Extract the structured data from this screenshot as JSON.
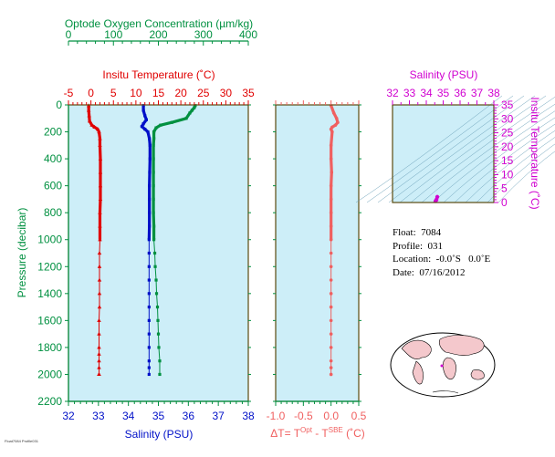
{
  "colors": {
    "temperature": "#e00000",
    "salinity": "#0010c8",
    "oxygen": "#009040",
    "delta": "#f06060",
    "ts_axis": "#d000d0",
    "panel_bg": "#cdeef8",
    "frame": "#5a4a10",
    "land": "#f4c8cc"
  },
  "chart_data": [
    {
      "type": "line",
      "title": "",
      "ylabel": "Pressure (decibar)",
      "ylim": [
        2200,
        0
      ],
      "yticks": [
        "0",
        "200",
        "400",
        "600",
        "800",
        "1000",
        "1200",
        "1400",
        "1600",
        "1800",
        "2000",
        "2200"
      ],
      "axes": {
        "oxygen": {
          "label": "Optode Oxygen Concentration (µm/kg)",
          "range": [
            0,
            400
          ],
          "ticks": [
            "0",
            "100",
            "200",
            "300",
            "400"
          ]
        },
        "temperature": {
          "label": "Insitu Temperature (˚C)",
          "range": [
            -5,
            35
          ],
          "ticks": [
            "-5",
            "0",
            "5",
            "10",
            "15",
            "20",
            "25",
            "30",
            "35"
          ]
        },
        "salinity": {
          "label": "Salinity (PSU)",
          "range": [
            32,
            38
          ],
          "ticks": [
            "32",
            "33",
            "34",
            "35",
            "36",
            "37",
            "38"
          ]
        }
      },
      "series": [
        {
          "name": "temperature",
          "axis": "temperature",
          "x": [
            -0.5,
            -0.5,
            -0.4,
            -0.3,
            0.2,
            0.8,
            1.5,
            1.8,
            2.0,
            2.0,
            2.1,
            2.1,
            2.1,
            2.1,
            2.0,
            2.0,
            2.0,
            1.9,
            1.9,
            1.9,
            1.9,
            1.9,
            1.8,
            1.8,
            1.8,
            1.8,
            1.8,
            1.8,
            1.8,
            1.8,
            1.8
          ],
          "y": [
            5,
            40,
            80,
            120,
            150,
            165,
            180,
            200,
            250,
            300,
            400,
            500,
            600,
            700,
            800,
            900,
            1000,
            1100,
            1200,
            1300,
            1400,
            1500,
            1600,
            1700,
            1800,
            1850,
            1900,
            1950,
            2000,
            2000,
            2000
          ]
        },
        {
          "name": "salinity",
          "axis": "salinity",
          "x": [
            34.5,
            34.5,
            34.55,
            34.6,
            34.5,
            34.45,
            34.55,
            34.65,
            34.7,
            34.72,
            34.72,
            34.71,
            34.7,
            34.7,
            34.7,
            34.7,
            34.69,
            34.69,
            34.69,
            34.69,
            34.69,
            34.69,
            34.69,
            34.69,
            34.69,
            34.69,
            34.69,
            34.69
          ],
          "y": [
            5,
            40,
            80,
            110,
            140,
            160,
            180,
            200,
            250,
            300,
            400,
            500,
            600,
            700,
            800,
            900,
            1000,
            1100,
            1200,
            1300,
            1400,
            1500,
            1600,
            1700,
            1800,
            1900,
            1950,
            2000
          ]
        },
        {
          "name": "oxygen",
          "axis": "oxygen",
          "x": [
            282,
            280,
            275,
            270,
            262,
            230,
            205,
            195,
            190,
            190,
            189,
            189,
            189,
            189,
            189,
            189,
            190,
            190,
            192,
            193,
            195,
            196,
            198,
            199,
            200,
            201,
            203,
            203
          ],
          "y": [
            5,
            20,
            40,
            60,
            100,
            130,
            150,
            170,
            200,
            250,
            300,
            400,
            500,
            600,
            700,
            800,
            900,
            1000,
            1100,
            1200,
            1300,
            1400,
            1500,
            1600,
            1700,
            1800,
            1900,
            2000
          ]
        }
      ]
    },
    {
      "type": "line",
      "title": "",
      "xlabel": "ΔT= T",
      "xlabel_sup1": "Opt",
      "xlabel_mid": " - T",
      "xlabel_sup2": "SBE",
      "xlabel_unit": " (˚C)",
      "xlim": [
        -1.0,
        0.5
      ],
      "xticks": [
        "-1.0",
        "-0.5",
        "0.0",
        "0.5"
      ],
      "ylim": [
        2200,
        0
      ],
      "series": [
        {
          "name": "delta",
          "x": [
            0.0,
            0.05,
            0.1,
            0.12,
            0.08,
            0.02,
            0.0,
            0.02,
            0.0,
            0.0,
            0.01,
            0.0,
            0.0,
            0.0,
            0.0,
            0.0,
            0.0,
            0.0,
            0.0,
            0.0,
            0.0,
            0.0,
            0.0,
            0.0,
            0.0,
            0.0,
            0.0
          ],
          "y": [
            5,
            60,
            100,
            130,
            150,
            165,
            180,
            200,
            300,
            400,
            500,
            600,
            700,
            800,
            900,
            1000,
            1100,
            1200,
            1300,
            1400,
            1500,
            1600,
            1700,
            1800,
            1900,
            1950,
            2000
          ]
        }
      ]
    },
    {
      "type": "scatter",
      "title": "",
      "xlabel": "Salinity (PSU)",
      "ylabel": "Insitu Temperature (˚C)",
      "xlim": [
        32,
        38
      ],
      "ylim": [
        0,
        35
      ],
      "xticks": [
        "32",
        "33",
        "34",
        "35",
        "36",
        "37",
        "38"
      ],
      "yticks": [
        "0",
        "5",
        "10",
        "15",
        "20",
        "25",
        "30",
        "35"
      ],
      "series": [
        {
          "name": "ts",
          "x": [
            34.55,
            34.6,
            34.65
          ],
          "y": [
            0.5,
            1.0,
            2.0
          ]
        }
      ]
    }
  ],
  "info": {
    "float_label": "Float:",
    "float_value": "7084",
    "profile_label": "Profile:",
    "profile_value": "031",
    "location_label": "Location:",
    "location_value": "-0.0˚S   0.0˚E",
    "date_label": "Date:",
    "date_value": "07/16/2012"
  },
  "map": {
    "marker_icon": "globe-map-icon"
  },
  "footer": "Float7084 Profile031"
}
